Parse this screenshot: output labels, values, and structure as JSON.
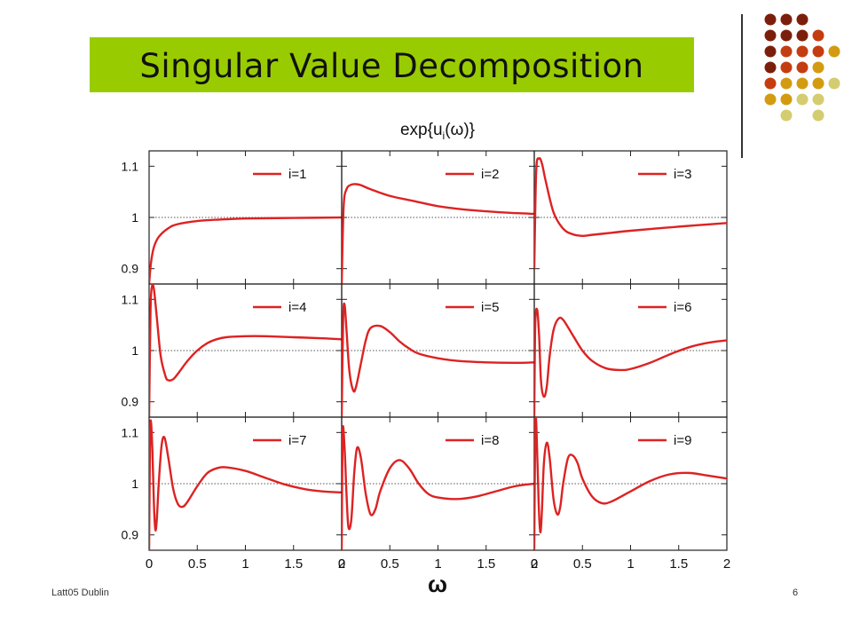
{
  "slide": {
    "title": "Singular Value Decomposition",
    "footer_left": "Latt05 Dublin",
    "footer_right": "6",
    "title_bar_color": "#99cc00",
    "curve_color": "#dd2222",
    "dot_colors": [
      "#7b1f0c",
      "#c43d10",
      "#d29b12",
      "#d4cc70"
    ]
  },
  "chart_data": {
    "type": "line",
    "title": "exp{u_i(ω)}",
    "xlabel": "ω",
    "ylabel": "",
    "xlim": [
      0,
      2
    ],
    "ylim": [
      0.87,
      1.13
    ],
    "x_ticks": [
      "0",
      "0.5",
      "1",
      "1.5",
      "2"
    ],
    "y_ticks": [
      "0.9",
      "1",
      "1.1"
    ],
    "reference_line": 1,
    "grid": "3x3 small multiples",
    "legend_position": "top-right",
    "series": [
      {
        "name": "i=1",
        "x": [
          0,
          0.02,
          0.05,
          0.1,
          0.2,
          0.3,
          0.5,
          0.75,
          1.0,
          1.5,
          2.0
        ],
        "y": [
          0.87,
          0.912,
          0.942,
          0.962,
          0.979,
          0.987,
          0.993,
          0.996,
          0.998,
          0.999,
          1.0
        ]
      },
      {
        "name": "i=2",
        "x": [
          0,
          0.02,
          0.05,
          0.1,
          0.15,
          0.2,
          0.3,
          0.5,
          0.75,
          1.0,
          1.25,
          1.5,
          1.75,
          2.0
        ],
        "y": [
          0.87,
          1.02,
          1.055,
          1.064,
          1.065,
          1.063,
          1.055,
          1.042,
          1.032,
          1.022,
          1.016,
          1.012,
          1.009,
          1.007
        ]
      },
      {
        "name": "i=3",
        "x": [
          0,
          0.02,
          0.05,
          0.08,
          0.12,
          0.2,
          0.3,
          0.4,
          0.5,
          0.6,
          0.8,
          1.0,
          1.5,
          2.0
        ],
        "y": [
          0.9,
          1.09,
          1.115,
          1.105,
          1.07,
          1.01,
          0.978,
          0.967,
          0.964,
          0.966,
          0.97,
          0.974,
          0.982,
          0.989
        ]
      },
      {
        "name": "i=4",
        "x": [
          0,
          0.015,
          0.03,
          0.05,
          0.08,
          0.12,
          0.17,
          0.2,
          0.25,
          0.3,
          0.4,
          0.5,
          0.6,
          0.7,
          0.8,
          1.0,
          1.2,
          1.5,
          1.8,
          2.0
        ],
        "y": [
          0.87,
          1.08,
          1.125,
          1.12,
          1.065,
          0.99,
          0.95,
          0.942,
          0.944,
          0.955,
          0.98,
          1.0,
          1.014,
          1.022,
          1.026,
          1.028,
          1.028,
          1.026,
          1.024,
          1.022
        ]
      },
      {
        "name": "i=5",
        "x": [
          0,
          0.015,
          0.03,
          0.05,
          0.08,
          0.12,
          0.15,
          0.2,
          0.25,
          0.3,
          0.4,
          0.5,
          0.6,
          0.7,
          0.8,
          1.0,
          1.2,
          1.5,
          1.8,
          2.0
        ],
        "y": [
          0.87,
          1.06,
          1.09,
          1.04,
          0.96,
          0.922,
          0.93,
          0.975,
          1.02,
          1.044,
          1.048,
          1.036,
          1.018,
          1.004,
          0.994,
          0.985,
          0.98,
          0.977,
          0.976,
          0.977
        ]
      },
      {
        "name": "i=6",
        "x": [
          0,
          0.01,
          0.03,
          0.05,
          0.07,
          0.1,
          0.13,
          0.16,
          0.2,
          0.25,
          0.3,
          0.4,
          0.5,
          0.6,
          0.75,
          0.9,
          1.0,
          1.2,
          1.4,
          1.6,
          1.8,
          2.0
        ],
        "y": [
          0.87,
          1.05,
          1.08,
          1.03,
          0.94,
          0.91,
          0.93,
          0.99,
          1.04,
          1.062,
          1.06,
          1.03,
          1.0,
          0.98,
          0.965,
          0.962,
          0.964,
          0.976,
          0.992,
          1.006,
          1.015,
          1.02
        ]
      },
      {
        "name": "i=7",
        "x": [
          0,
          0.01,
          0.02,
          0.035,
          0.05,
          0.065,
          0.08,
          0.1,
          0.13,
          0.16,
          0.2,
          0.25,
          0.3,
          0.35,
          0.4,
          0.5,
          0.6,
          0.7,
          0.8,
          1.0,
          1.2,
          1.4,
          1.6,
          1.8,
          2.0
        ],
        "y": [
          0.87,
          1.09,
          1.12,
          1.06,
          0.96,
          0.91,
          0.93,
          1.0,
          1.075,
          1.09,
          1.05,
          0.99,
          0.96,
          0.955,
          0.965,
          0.995,
          1.02,
          1.03,
          1.032,
          1.025,
          1.012,
          0.999,
          0.99,
          0.985,
          0.983
        ]
      },
      {
        "name": "i=8",
        "x": [
          0,
          0.01,
          0.03,
          0.05,
          0.07,
          0.1,
          0.13,
          0.16,
          0.2,
          0.25,
          0.3,
          0.35,
          0.4,
          0.5,
          0.6,
          0.7,
          0.8,
          0.9,
          1.0,
          1.2,
          1.4,
          1.6,
          1.8,
          2.0
        ],
        "y": [
          0.87,
          1.1,
          1.07,
          0.98,
          0.915,
          0.93,
          1.02,
          1.07,
          1.05,
          0.98,
          0.94,
          0.95,
          0.985,
          1.03,
          1.046,
          1.03,
          1.0,
          0.98,
          0.973,
          0.97,
          0.975,
          0.985,
          0.995,
          1.0
        ]
      },
      {
        "name": "i=9",
        "x": [
          0,
          0.01,
          0.02,
          0.035,
          0.05,
          0.065,
          0.08,
          0.1,
          0.13,
          0.16,
          0.2,
          0.24,
          0.27,
          0.3,
          0.35,
          0.4,
          0.45,
          0.5,
          0.6,
          0.7,
          0.8,
          1.0,
          1.2,
          1.4,
          1.6,
          1.8,
          2.0
        ],
        "y": [
          0.87,
          1.11,
          1.12,
          1.03,
          0.94,
          0.905,
          0.95,
          1.04,
          1.08,
          1.05,
          0.97,
          0.94,
          0.955,
          1.0,
          1.05,
          1.055,
          1.04,
          1.01,
          0.975,
          0.962,
          0.965,
          0.985,
          1.005,
          1.018,
          1.021,
          1.016,
          1.01
        ]
      }
    ]
  }
}
